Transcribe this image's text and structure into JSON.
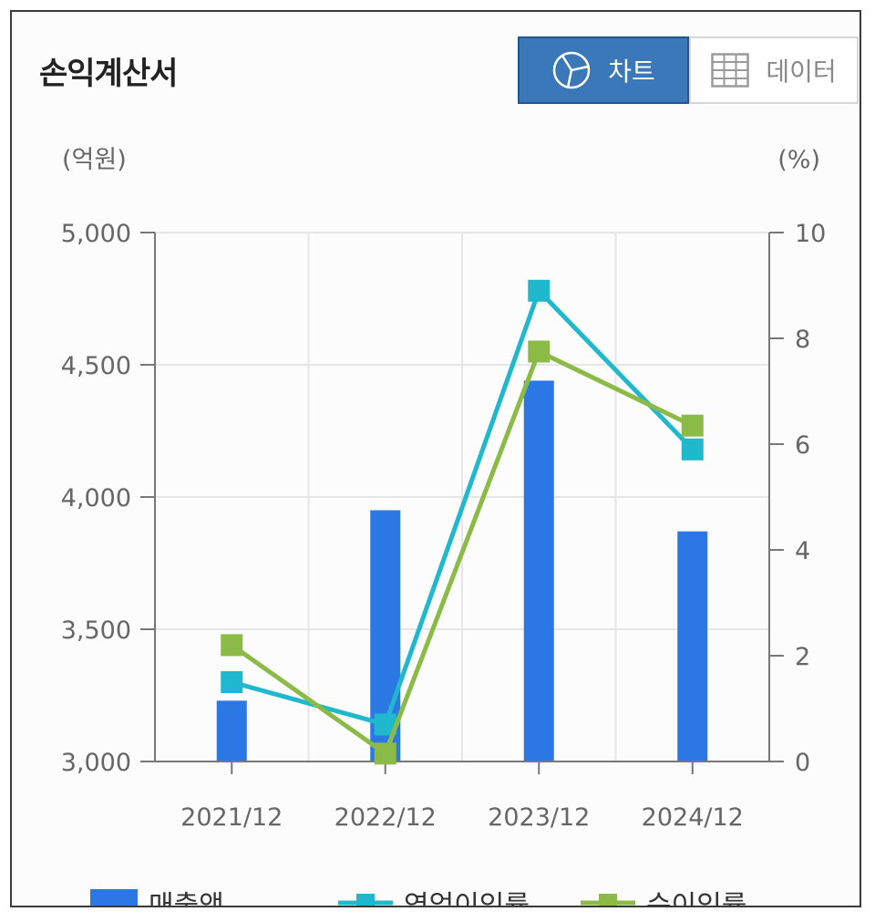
{
  "header": {
    "title": "손익계산서",
    "chart_button_label": "차트",
    "data_button_label": "데이터"
  },
  "units": {
    "left": "(억원)",
    "right": "(%)"
  },
  "legend": {
    "items": [
      {
        "label": "매출액",
        "color": "#2b78e4"
      },
      {
        "label": "영업이익률",
        "color": "#1fb8cc"
      },
      {
        "label": "순이익률",
        "color": "#8bbb46"
      }
    ]
  },
  "chart_data": {
    "type": "bar",
    "categories": [
      "2021/12",
      "2022/12",
      "2023/12",
      "2024/12"
    ],
    "series": [
      {
        "name": "매출액",
        "type": "bar",
        "axis": "left",
        "color": "#2b78e4",
        "values": [
          3230,
          3950,
          4440,
          3870
        ]
      },
      {
        "name": "영업이익률",
        "type": "line",
        "axis": "right",
        "color": "#1fb8cc",
        "values": [
          1.5,
          0.7,
          8.9,
          5.9
        ]
      },
      {
        "name": "순이익률",
        "type": "line",
        "axis": "right",
        "color": "#8bbb46",
        "values": [
          2.2,
          0.15,
          7.75,
          6.35
        ]
      }
    ],
    "y_left": {
      "ticks": [
        "3,000",
        "3,500",
        "4,000",
        "4,500",
        "5,000"
      ],
      "range": [
        3000,
        5000
      ]
    },
    "y_right": {
      "ticks": [
        "0",
        "2",
        "4",
        "6",
        "8",
        "10"
      ],
      "range": [
        0,
        10
      ]
    },
    "grid": true,
    "legend_position": "bottom"
  }
}
